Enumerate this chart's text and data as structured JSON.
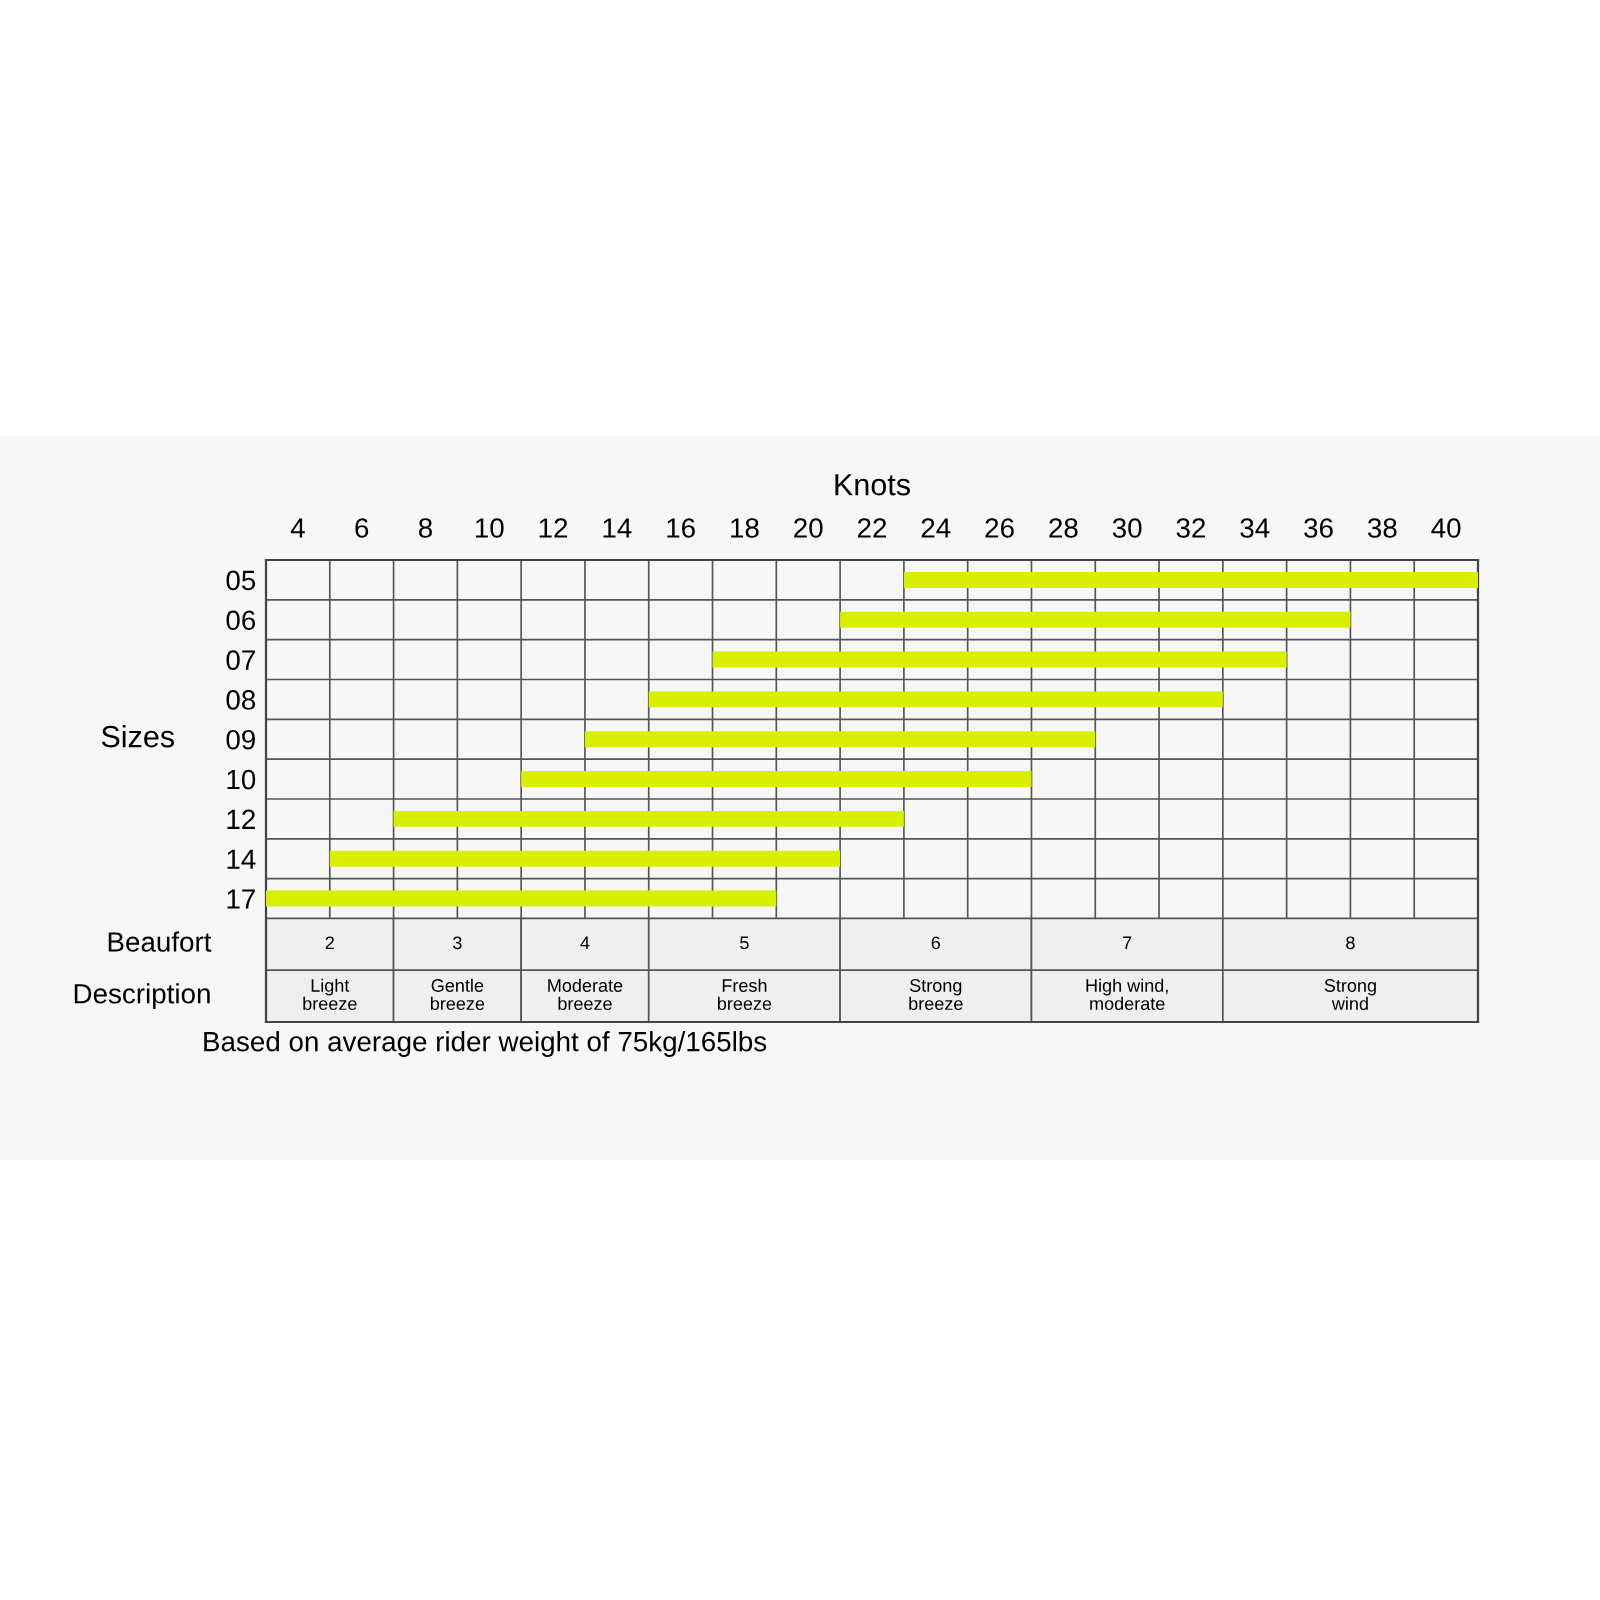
{
  "chart_data": {
    "type": "bar",
    "orientation": "horizontal",
    "xlabel": "Knots",
    "ylabel": "Sizes",
    "categories": [
      "05",
      "06",
      "07",
      "08",
      "09",
      "10",
      "12",
      "14",
      "17"
    ],
    "base": [
      23,
      21,
      17,
      15,
      13,
      11,
      7,
      5,
      3
    ],
    "values": [
      18,
      16,
      18,
      18,
      16,
      16,
      16,
      16,
      16
    ],
    "color": "#d9ef00",
    "xlim": [
      3,
      41
    ],
    "xticks": [
      4,
      6,
      8,
      10,
      12,
      14,
      16,
      18,
      20,
      22,
      24,
      26,
      28,
      30,
      32,
      34,
      36,
      38,
      40
    ],
    "grid": true,
    "bands": [
      {
        "axis": "x",
        "from": 3,
        "to": 7,
        "label": "2",
        "color": "#efefef"
      },
      {
        "axis": "x",
        "from": 7,
        "to": 11,
        "label": "3",
        "color": "#efefef"
      },
      {
        "axis": "x",
        "from": 11,
        "to": 15,
        "label": "4",
        "color": "#efefef"
      },
      {
        "axis": "x",
        "from": 15,
        "to": 21,
        "label": "5",
        "color": "#efefef"
      },
      {
        "axis": "x",
        "from": 21,
        "to": 27,
        "label": "6",
        "color": "#efefef"
      },
      {
        "axis": "x",
        "from": 27,
        "to": 33,
        "label": "7",
        "color": "#efefef"
      },
      {
        "axis": "x",
        "from": 33,
        "to": 41,
        "label": "8",
        "color": "#efefef"
      }
    ],
    "annotations": [
      "Beaufort",
      "Description",
      "Light\nbreeze",
      "Gentle\nbreeze",
      "Moderate\nbreeze",
      "Fresh\nbreeze",
      "Strong\nbreeze",
      "High wind,\nmoderate",
      "Strong\nwind",
      "Based on average rider weight of 75kg/165lbs"
    ]
  }
}
